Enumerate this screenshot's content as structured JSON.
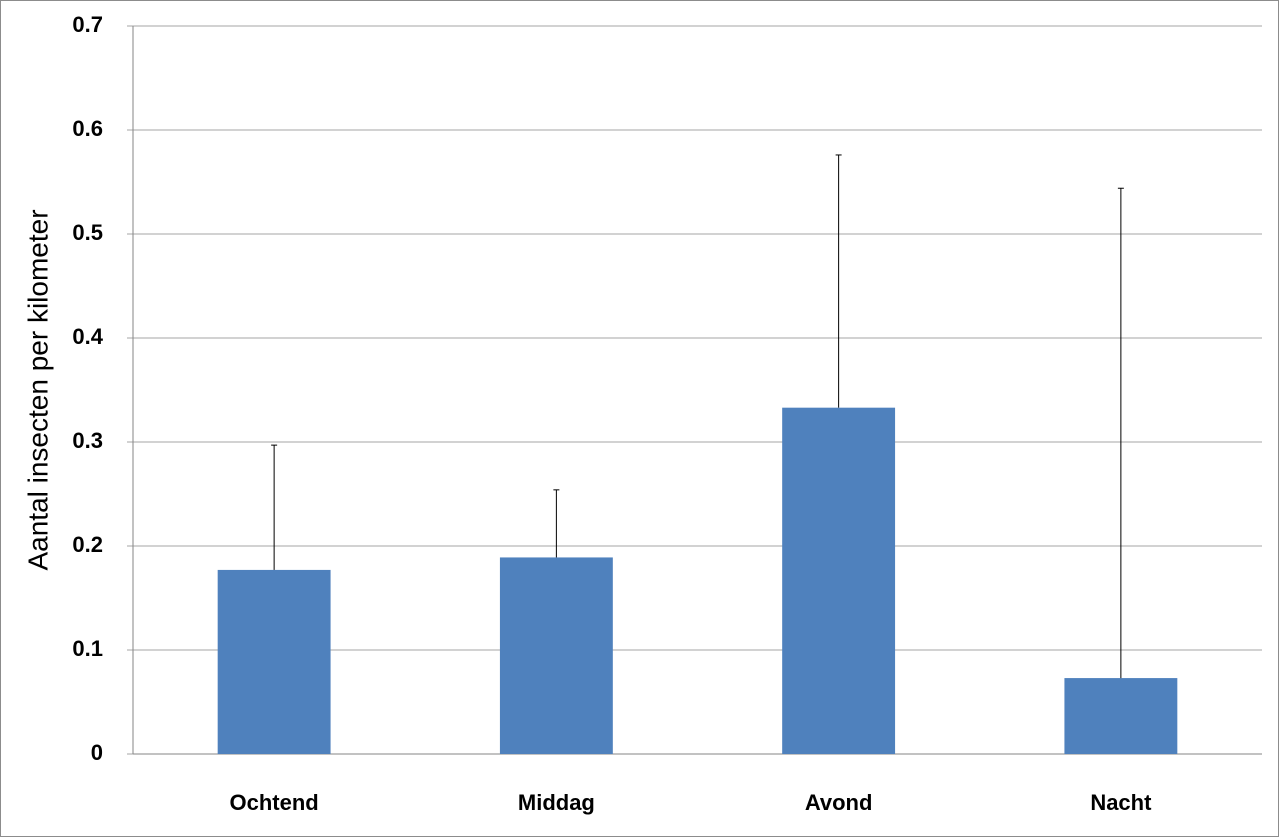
{
  "chart_data": {
    "type": "bar",
    "y_label": "Aantal insecten per kilometer",
    "categories": [
      "Ochtend",
      "Middag",
      "Avond",
      "Nacht"
    ],
    "values": [
      0.177,
      0.189,
      0.333,
      0.073
    ],
    "errors": [
      0.12,
      0.065,
      0.243,
      0.471
    ],
    "color": "#4f81bd",
    "ylim": [
      0,
      0.7
    ],
    "yticks": [
      0,
      0.1,
      0.2,
      0.3,
      0.4,
      0.5,
      0.6,
      0.7
    ],
    "grid": true
  }
}
